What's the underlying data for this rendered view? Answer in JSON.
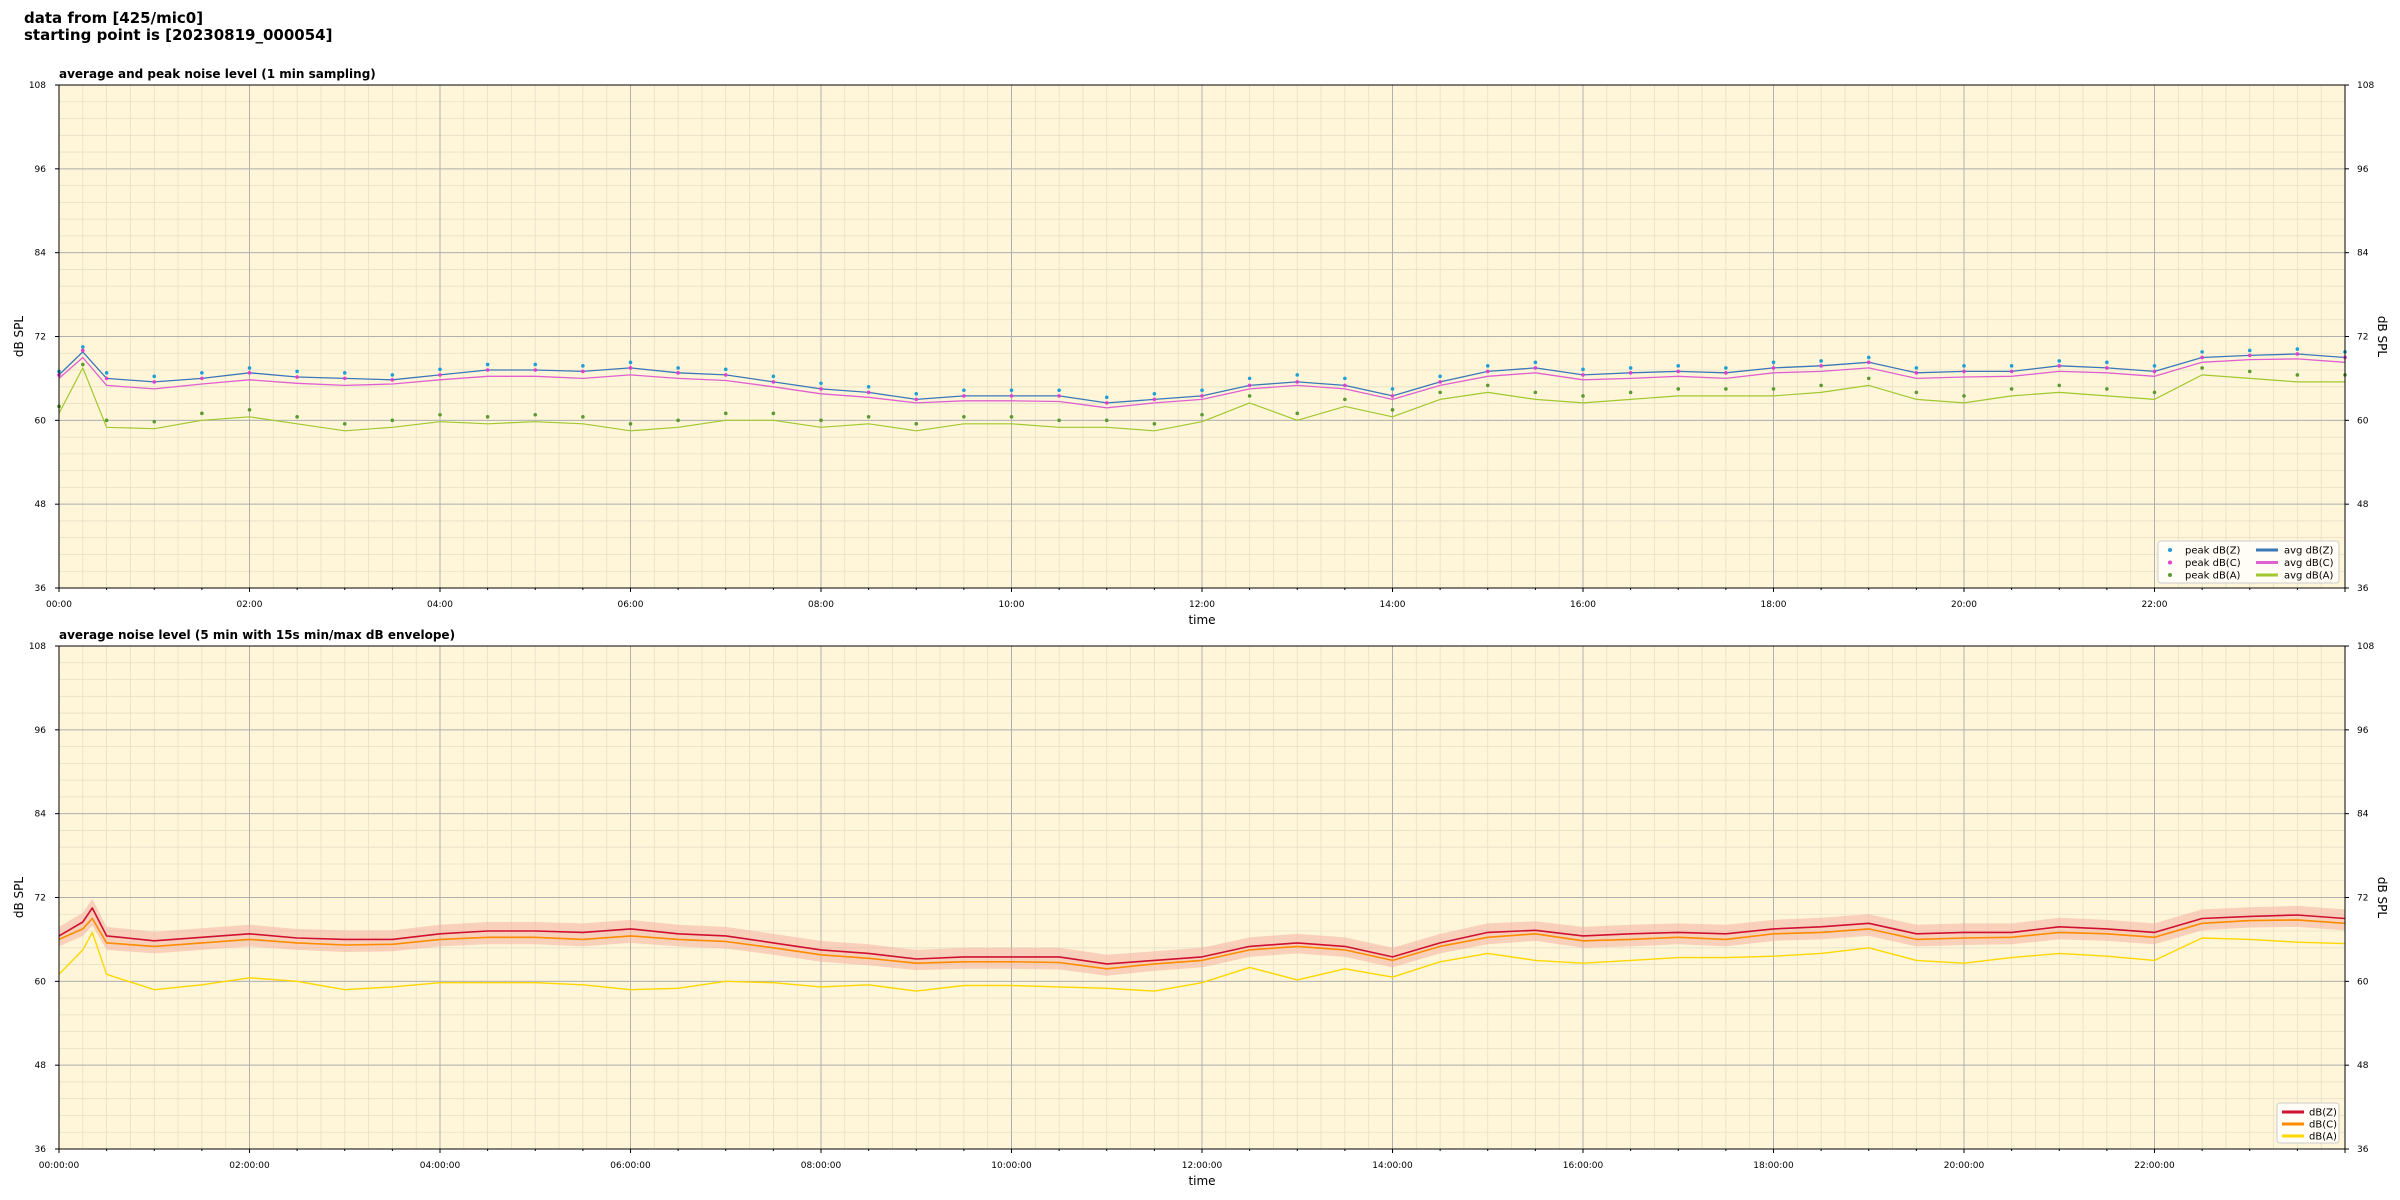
{
  "header": {
    "line1": "data from [425/mic0]",
    "line2": "starting point is [20230819_000054]"
  },
  "colors": {
    "background": "#ffffff",
    "plot_background": "#fff6da",
    "grid_major": "#b0b0b0",
    "grid_minor": "#e6dfc6",
    "peak_z": "#1f9fd6",
    "peak_c": "#e040d0",
    "peak_a": "#5a9a30",
    "avg_z": "#3a78b8",
    "avg_c": "#e060d0",
    "avg_a": "#a0c830",
    "dbz": "#d01030",
    "dbc": "#ff8c00",
    "dba": "#ffd700",
    "envelope": "#f4b0a0"
  },
  "chart_data": [
    {
      "type": "line",
      "title": "average and peak noise level (1 min sampling)",
      "xlabel": "time",
      "ylabel": "dB SPL",
      "ylim": [
        36,
        108
      ],
      "yticks": [
        "36",
        "48",
        "60",
        "72",
        "84",
        "96",
        "108"
      ],
      "xlim_hours": [
        0,
        24
      ],
      "xticks": [
        "00:00",
        "02:00",
        "04:00",
        "06:00",
        "08:00",
        "10:00",
        "12:00",
        "14:00",
        "16:00",
        "18:00",
        "20:00",
        "22:00"
      ],
      "grid": true,
      "legend_position": "bottom-right",
      "legend": [
        "peak dB(Z)",
        "peak dB(C)",
        "peak dB(A)",
        "avg dB(Z)",
        "avg dB(C)",
        "avg dB(A)"
      ],
      "x_hours": [
        0,
        0.25,
        0.5,
        1,
        1.5,
        2,
        2.5,
        3,
        3.5,
        4,
        4.5,
        5,
        5.5,
        6,
        6.5,
        7,
        7.5,
        8,
        8.5,
        9,
        9.5,
        10,
        10.5,
        11,
        11.5,
        12,
        12.5,
        13,
        13.5,
        14,
        14.5,
        15,
        15.5,
        16,
        16.5,
        17,
        17.5,
        18,
        18.5,
        19,
        19.5,
        20,
        20.5,
        21,
        21.5,
        22,
        22.5,
        23,
        23.5,
        24
      ],
      "series": [
        {
          "name": "avg dB(Z)",
          "values": [
            66.5,
            69.8,
            66.0,
            65.5,
            66.0,
            66.8,
            66.2,
            66.0,
            65.8,
            66.5,
            67.2,
            67.2,
            67.0,
            67.5,
            66.8,
            66.5,
            65.5,
            64.5,
            64.0,
            63.0,
            63.5,
            63.5,
            63.5,
            62.5,
            63.0,
            63.5,
            65.0,
            65.5,
            65.0,
            63.5,
            65.5,
            67.0,
            67.5,
            66.5,
            66.8,
            67.0,
            66.8,
            67.5,
            67.8,
            68.3,
            66.8,
            67.0,
            67.0,
            67.8,
            67.5,
            67.0,
            69.0,
            69.3,
            69.5,
            69.0
          ]
        },
        {
          "name": "avg dB(C)",
          "values": [
            66.0,
            69.0,
            65.0,
            64.5,
            65.2,
            65.8,
            65.3,
            65.0,
            65.2,
            65.8,
            66.3,
            66.3,
            66.0,
            66.5,
            66.0,
            65.7,
            64.8,
            63.8,
            63.3,
            62.5,
            62.8,
            62.8,
            62.7,
            61.8,
            62.5,
            63.0,
            64.5,
            65.0,
            64.5,
            63.0,
            65.0,
            66.3,
            66.8,
            65.8,
            66.0,
            66.3,
            66.0,
            66.8,
            67.0,
            67.5,
            66.0,
            66.2,
            66.3,
            67.0,
            66.8,
            66.3,
            68.3,
            68.7,
            68.8,
            68.3
          ]
        },
        {
          "name": "avg dB(A)",
          "values": [
            61.0,
            67.5,
            59.0,
            58.8,
            60.0,
            60.5,
            59.5,
            58.5,
            59.0,
            59.8,
            59.5,
            59.8,
            59.5,
            58.5,
            59.0,
            60.0,
            60.0,
            59.0,
            59.5,
            58.5,
            59.5,
            59.5,
            59.0,
            59.0,
            58.5,
            59.8,
            62.5,
            60.0,
            62.0,
            60.5,
            63.0,
            64.0,
            63.0,
            62.5,
            63.0,
            63.5,
            63.5,
            63.5,
            64.0,
            65.0,
            63.0,
            62.5,
            63.5,
            64.0,
            63.5,
            63.0,
            66.5,
            66.0,
            65.5,
            65.5
          ]
        },
        {
          "name": "peak dB(Z)",
          "values": [
            67.0,
            70.5,
            66.8,
            66.3,
            66.8,
            67.5,
            67.0,
            66.8,
            66.5,
            67.3,
            68.0,
            68.0,
            67.8,
            68.3,
            67.5,
            67.3,
            66.3,
            65.3,
            64.8,
            63.8,
            64.3,
            64.3,
            64.3,
            63.3,
            63.8,
            64.3,
            66.0,
            66.5,
            66.0,
            64.5,
            66.3,
            67.8,
            68.3,
            67.3,
            67.5,
            67.8,
            67.5,
            68.3,
            68.5,
            69.0,
            67.5,
            67.8,
            67.8,
            68.5,
            68.3,
            67.8,
            69.8,
            70.0,
            70.2,
            69.8
          ]
        },
        {
          "name": "peak dB(C)",
          "values": [
            66.5,
            70.0,
            66.0,
            65.5,
            66.0,
            66.8,
            66.2,
            66.0,
            65.8,
            66.5,
            67.2,
            67.2,
            67.0,
            67.5,
            66.8,
            66.5,
            65.5,
            64.5,
            64.0,
            63.0,
            63.5,
            63.5,
            63.5,
            62.5,
            63.0,
            63.5,
            65.0,
            65.5,
            65.0,
            63.5,
            65.5,
            67.0,
            67.5,
            66.5,
            66.8,
            67.0,
            66.8,
            67.5,
            67.8,
            68.3,
            66.8,
            67.0,
            67.0,
            67.8,
            67.5,
            67.0,
            69.0,
            69.3,
            69.5,
            69.0
          ]
        },
        {
          "name": "peak dB(A)",
          "values": [
            62.0,
            68.0,
            60.0,
            59.8,
            61.0,
            61.5,
            60.5,
            59.5,
            60.0,
            60.8,
            60.5,
            60.8,
            60.5,
            59.5,
            60.0,
            61.0,
            61.0,
            60.0,
            60.5,
            59.5,
            60.5,
            60.5,
            60.0,
            60.0,
            59.5,
            60.8,
            63.5,
            61.0,
            63.0,
            61.5,
            64.0,
            65.0,
            64.0,
            63.5,
            64.0,
            64.5,
            64.5,
            64.5,
            65.0,
            66.0,
            64.0,
            63.5,
            64.5,
            65.0,
            64.5,
            64.0,
            67.5,
            67.0,
            66.5,
            66.5
          ]
        }
      ]
    },
    {
      "type": "line",
      "title": "average noise level (5 min with 15s min/max dB envelope)",
      "xlabel": "time",
      "ylabel": "dB SPL",
      "ylim": [
        36,
        108
      ],
      "yticks": [
        "36",
        "48",
        "60",
        "72",
        "84",
        "96",
        "108"
      ],
      "xlim_hours": [
        0,
        24
      ],
      "xticks": [
        "00:00:00",
        "02:00:00",
        "04:00:00",
        "06:00:00",
        "08:00:00",
        "10:00:00",
        "12:00:00",
        "14:00:00",
        "16:00:00",
        "18:00:00",
        "20:00:00",
        "22:00:00"
      ],
      "grid": true,
      "legend_position": "bottom-right",
      "legend": [
        "dB(Z)",
        "dB(C)",
        "dB(A)"
      ],
      "x_hours": [
        0,
        0.25,
        0.35,
        0.5,
        1,
        1.5,
        2,
        2.5,
        3,
        3.5,
        4,
        4.5,
        5,
        5.5,
        6,
        6.5,
        7,
        7.5,
        8,
        8.5,
        9,
        9.5,
        10,
        10.5,
        11,
        11.5,
        12,
        12.5,
        13,
        13.5,
        14,
        14.5,
        15,
        15.5,
        16,
        16.5,
        17,
        17.5,
        18,
        18.5,
        19,
        19.5,
        20,
        20.5,
        21,
        21.5,
        22,
        22.5,
        23,
        23.5,
        24
      ],
      "series": [
        {
          "name": "dB(Z)",
          "values": [
            66.5,
            68.5,
            70.5,
            66.5,
            65.8,
            66.3,
            66.8,
            66.2,
            66.0,
            66.0,
            66.8,
            67.2,
            67.2,
            67.0,
            67.5,
            66.8,
            66.5,
            65.5,
            64.5,
            64.0,
            63.2,
            63.5,
            63.5,
            63.5,
            62.5,
            63.0,
            63.5,
            65.0,
            65.5,
            65.0,
            63.5,
            65.5,
            67.0,
            67.3,
            66.5,
            66.8,
            67.0,
            66.8,
            67.5,
            67.8,
            68.3,
            66.8,
            67.0,
            67.0,
            67.8,
            67.5,
            67.0,
            69.0,
            69.3,
            69.5,
            69.0
          ]
        },
        {
          "name": "dB(C)",
          "values": [
            66.0,
            67.5,
            69.0,
            65.5,
            65.0,
            65.5,
            66.0,
            65.5,
            65.2,
            65.3,
            66.0,
            66.3,
            66.3,
            66.0,
            66.5,
            66.0,
            65.7,
            64.8,
            63.8,
            63.3,
            62.6,
            62.8,
            62.8,
            62.7,
            61.8,
            62.5,
            63.0,
            64.5,
            65.0,
            64.5,
            63.0,
            65.0,
            66.3,
            66.8,
            65.8,
            66.0,
            66.3,
            66.0,
            66.8,
            67.0,
            67.5,
            66.0,
            66.2,
            66.3,
            67.0,
            66.8,
            66.3,
            68.3,
            68.7,
            68.8,
            68.3
          ]
        },
        {
          "name": "dB(A)",
          "values": [
            61.0,
            64.5,
            67.0,
            61.0,
            58.8,
            59.5,
            60.5,
            60.0,
            58.8,
            59.2,
            59.8,
            59.8,
            59.8,
            59.5,
            58.8,
            59.0,
            60.0,
            59.8,
            59.2,
            59.5,
            58.6,
            59.4,
            59.4,
            59.2,
            59.0,
            58.6,
            59.8,
            62.0,
            60.2,
            61.8,
            60.6,
            62.8,
            64.0,
            63.0,
            62.6,
            63.0,
            63.4,
            63.4,
            63.6,
            64.0,
            64.8,
            63.0,
            62.6,
            63.4,
            64.0,
            63.6,
            63.0,
            66.2,
            66.0,
            65.6,
            65.4
          ]
        }
      ]
    }
  ]
}
